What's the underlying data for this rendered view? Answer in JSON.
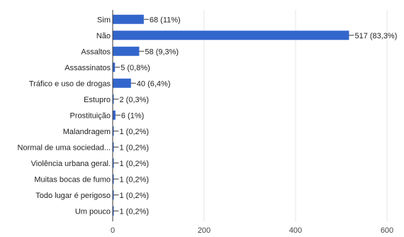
{
  "chart_data": {
    "type": "bar",
    "orientation": "horizontal",
    "categories": [
      "Sim",
      "Não",
      "Assaltos",
      "Assassinatos",
      "Tráfico e uso de drogas",
      "Estupro",
      "Prostituição",
      "Malandragem",
      "Normal de uma sociedad...",
      "Violência urbana geral.",
      "Muitas bocas de fumo",
      "Todo lugar é perigoso",
      "Um pouco"
    ],
    "values": [
      68,
      517,
      58,
      5,
      40,
      2,
      6,
      1,
      1,
      1,
      1,
      1,
      1
    ],
    "data_labels": [
      "68 (11%)",
      "517 (83,3%)",
      "58 (9,3%)",
      "5 (0,8%)",
      "40 (6,4%)",
      "2 (0,3%)",
      "6 (1%)",
      "1 (0,2%)",
      "1 (0,2%)",
      "1 (0,2%)",
      "1 (0,2%)",
      "1 (0,2%)",
      "1 (0,2%)"
    ],
    "x_ticks": [
      0,
      200,
      400,
      600
    ],
    "xlim": [
      0,
      600
    ],
    "grid": true,
    "bar_color": "#3366cc"
  }
}
